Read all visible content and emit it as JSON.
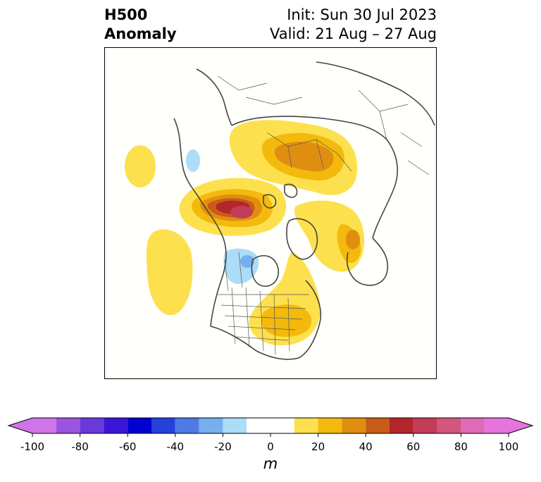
{
  "title": {
    "left_line1": "H500",
    "left_line2": "Anomaly",
    "right_line1": "Init: Sun 30 Jul 2023",
    "right_line2": "Valid: 21 Aug – 27 Aug"
  },
  "colorbar": {
    "unit": "m",
    "ticks": [
      "-100",
      "-80",
      "-60",
      "-40",
      "-20",
      "0",
      "20",
      "40",
      "60",
      "80",
      "100"
    ],
    "levels": [
      -100,
      -90,
      -80,
      -70,
      -60,
      -50,
      -40,
      -30,
      -20,
      -10,
      10,
      20,
      30,
      40,
      50,
      60,
      70,
      80,
      90,
      100
    ],
    "colors": [
      "#d074e8",
      "#9a55e0",
      "#6a3ad8",
      "#3b16d6",
      "#0000d0",
      "#2640dc",
      "#4f7ae6",
      "#76aff0",
      "#acdcf7",
      "#ffffff",
      "#fde04d",
      "#f3b90c",
      "#e08e10",
      "#c85c18",
      "#b2262c",
      "#c23c58",
      "#d2567d",
      "#de6ab8",
      "#e674dc"
    ],
    "extend_low_color": "#d074e8",
    "extend_high_color": "#e674dc"
  },
  "anomaly_colors": {
    "yellow": "#fde04d",
    "gold": "#f3b90c",
    "orange": "#e08e10",
    "dark_orange": "#c85c18",
    "red": "#b2262c",
    "pink": "#c23c58",
    "light_blue": "#acdcf7",
    "mid_blue": "#76aff0",
    "blue": "#4f7ae6"
  }
}
